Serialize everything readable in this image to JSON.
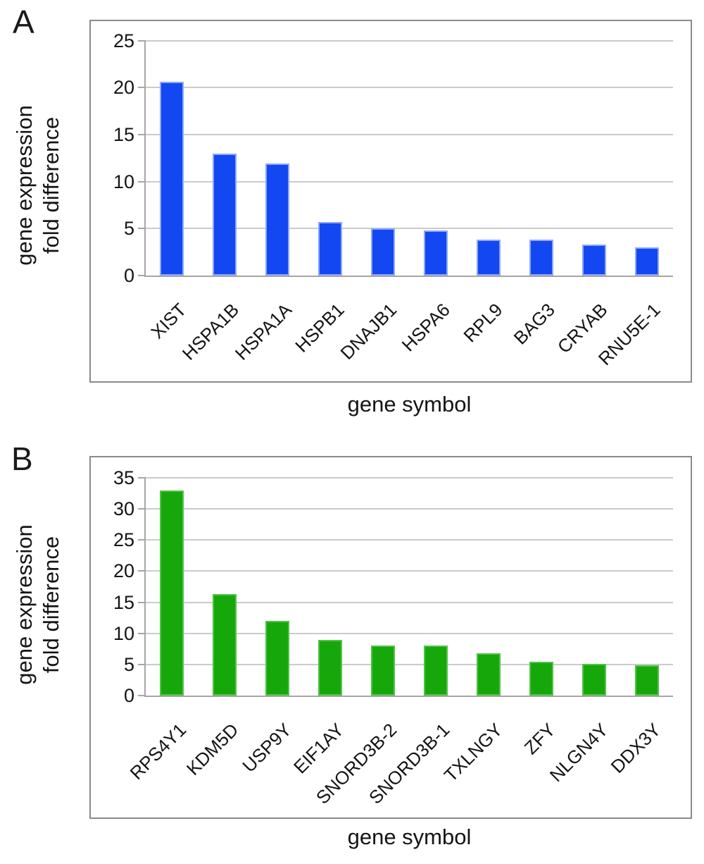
{
  "figure": {
    "background_color": "#ffffff",
    "panel_a_letter": "A",
    "panel_b_letter": "B"
  },
  "chart_data": [
    {
      "type": "bar",
      "panel_letter": "A",
      "title": "",
      "xlabel": "gene symbol",
      "ylabel_lines": [
        "gene expression",
        "fold difference"
      ],
      "categories": [
        "XIST",
        "HSPA1B",
        "HSPA1A",
        "HSPB1",
        "DNAJB1",
        "HSPA6",
        "RPL9",
        "BAG3",
        "CRYAB",
        "RNU5E-1"
      ],
      "values": [
        20.6,
        13.0,
        11.9,
        5.7,
        5.0,
        4.8,
        3.8,
        3.8,
        3.3,
        3.0
      ],
      "ylim": [
        0,
        25
      ],
      "yticks": [
        0,
        5,
        10,
        15,
        20,
        25
      ],
      "grid": true,
      "legend_position": "none",
      "bar_color": "#1247f2",
      "bar_border_color": "#8ea7f7",
      "gridline_color": "#cbcbcb",
      "axis_color": "#a6a6a6"
    },
    {
      "type": "bar",
      "panel_letter": "B",
      "title": "",
      "xlabel": "gene symbol",
      "ylabel_lines": [
        "gene expression",
        "fold difference"
      ],
      "categories": [
        "RPS4Y1",
        "KDM5D",
        "USP9Y",
        "EIF1AY",
        "SNORD3B-2",
        "SNORD3B-1",
        "TXLNGY",
        "ZFY",
        "NLGN4Y",
        "DDX3Y"
      ],
      "values": [
        33.0,
        16.3,
        12.0,
        9.0,
        8.0,
        8.0,
        6.8,
        5.4,
        5.1,
        4.9
      ],
      "ylim": [
        0,
        35
      ],
      "yticks": [
        0,
        5,
        10,
        15,
        20,
        25,
        30,
        35
      ],
      "grid": true,
      "legend_position": "none",
      "bar_color": "#16a80a",
      "bar_border_color": "#52c247",
      "gridline_color": "#cbcbcb",
      "axis_color": "#a6a6a6"
    }
  ]
}
